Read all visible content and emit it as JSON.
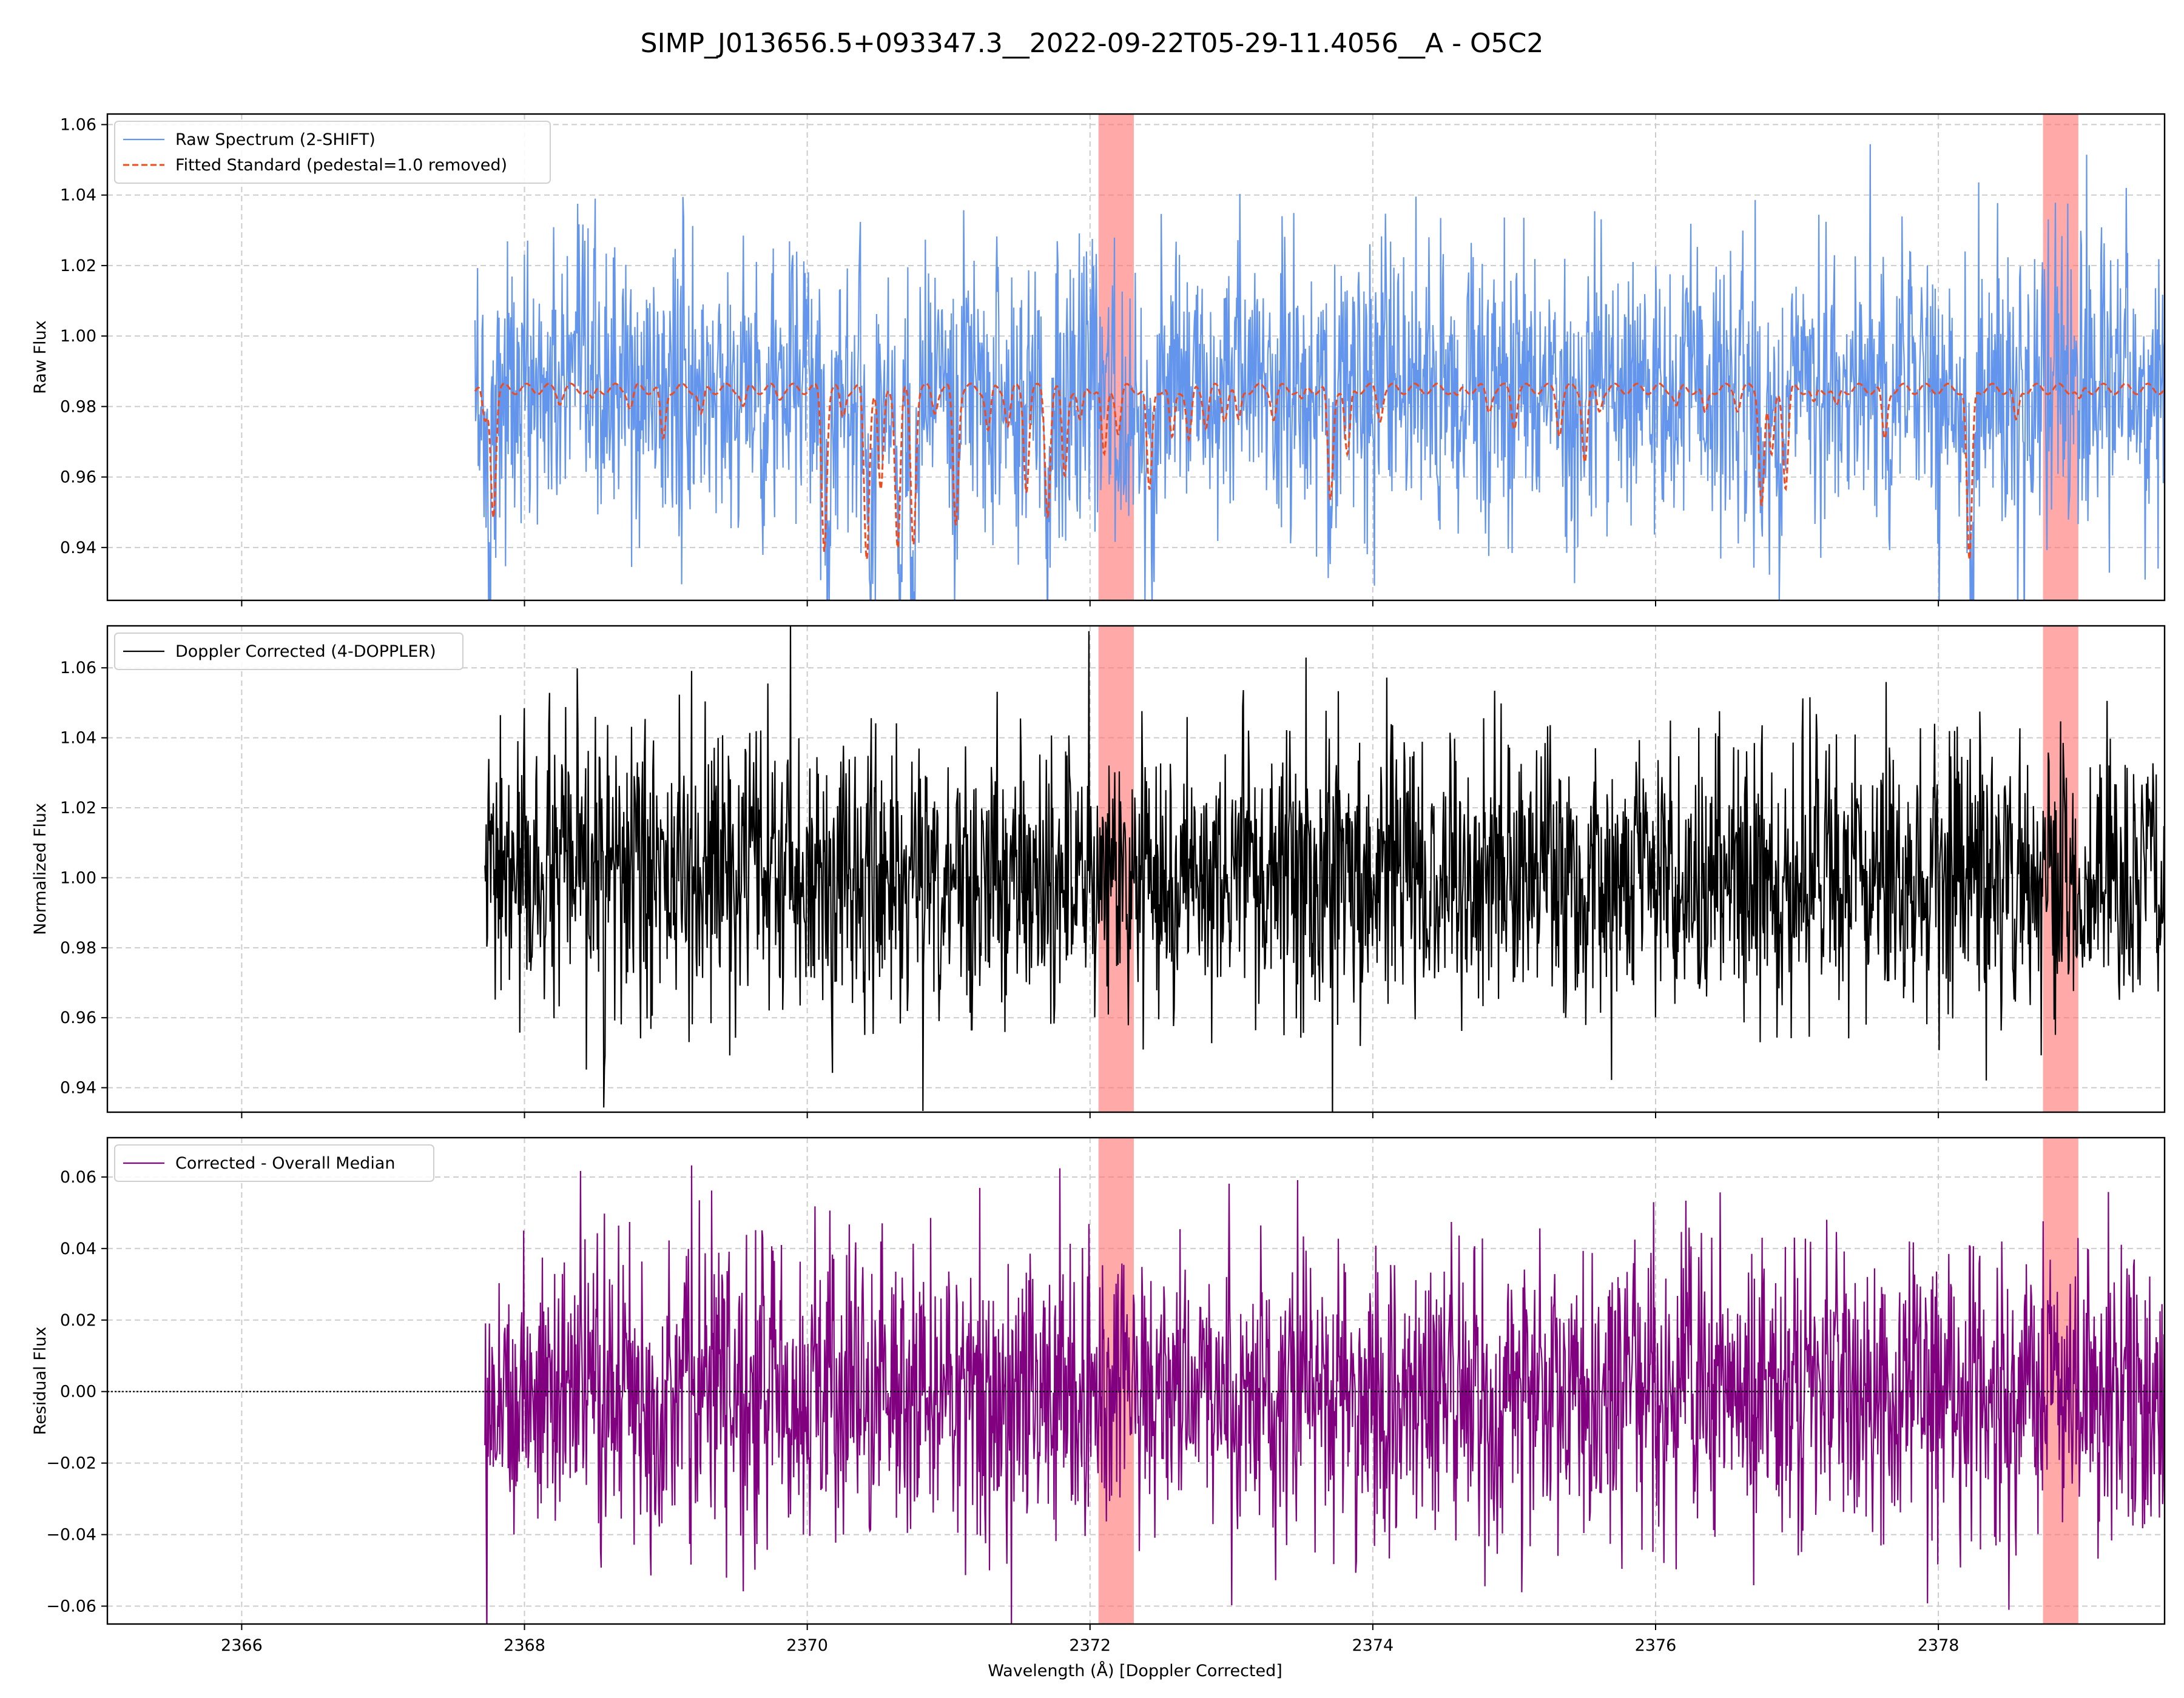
{
  "figure": {
    "title": "SIMP_J013656.5+093347.3__2022-09-22T05-29-11.4056__A - O5C2",
    "xlabel": "Wavelength (Å) [Doppler Corrected]"
  },
  "colors": {
    "raw": "#6495ED",
    "fit": "#EE4B1E",
    "doppler": "#000000",
    "residual": "#800080",
    "mask": "#FF6F6F",
    "grid": "#CCCCCC"
  },
  "chart_data": [
    {
      "type": "line",
      "ylabel": "Raw Flux",
      "xlim": [
        2365.05,
        2379.6
      ],
      "ylim": [
        0.925,
        1.063
      ],
      "xticks": [
        2366,
        2368,
        2370,
        2372,
        2374,
        2376,
        2378
      ],
      "xtick_labels": [
        "",
        "",
        "",
        "",
        "",
        "",
        ""
      ],
      "yticks": [
        0.94,
        0.96,
        0.98,
        1.0,
        1.02,
        1.04,
        1.06
      ],
      "ytick_labels": [
        "0.94",
        "0.96",
        "0.98",
        "1.00",
        "1.02",
        "1.04",
        "1.06"
      ],
      "grid": true,
      "legend_placement": "upper-left",
      "shaded_x_ranges": [
        [
          2372.06,
          2372.31
        ],
        [
          2378.74,
          2378.99
        ]
      ],
      "series": [
        {
          "name": "Raw Spectrum (2-SHIFT)",
          "style": "solid",
          "color": "#6495ED",
          "x_range": [
            2367.65,
            2379.6
          ],
          "baseline": 0.985,
          "noise_amplitude": 0.028,
          "absorption_lines": [
            [
              2367.75,
              0.035
            ],
            [
              2368.8,
              0.012
            ],
            [
              2369.2,
              0.01
            ],
            [
              2370.15,
              0.04
            ],
            [
              2370.45,
              0.045
            ],
            [
              2370.65,
              0.045
            ],
            [
              2370.75,
              0.045
            ],
            [
              2371.05,
              0.035
            ],
            [
              2371.5,
              0.02
            ],
            [
              2371.7,
              0.03
            ],
            [
              2372.2,
              0.02
            ],
            [
              2372.45,
              0.03
            ],
            [
              2373.7,
              0.03
            ],
            [
              2375.0,
              0.01
            ],
            [
              2375.45,
              0.018
            ],
            [
              2376.75,
              0.03
            ],
            [
              2376.9,
              0.03
            ],
            [
              2377.65,
              0.014
            ],
            [
              2378.23,
              0.048
            ]
          ]
        },
        {
          "name": "Fitted Standard (pedestal=1.0 removed)",
          "style": "dashed",
          "color": "#EE4B1E",
          "x_range": [
            2367.65,
            2379.6
          ],
          "baseline": 0.985,
          "lines": [
            [
              2367.72,
              0.01
            ],
            [
              2367.78,
              0.035
            ],
            [
              2368.25,
              0.003
            ],
            [
              2368.48,
              0.004
            ],
            [
              2368.75,
              0.005
            ],
            [
              2368.98,
              0.015
            ],
            [
              2369.25,
              0.008
            ],
            [
              2369.55,
              0.005
            ],
            [
              2369.8,
              0.002
            ],
            [
              2370.12,
              0.045
            ],
            [
              2370.25,
              0.008
            ],
            [
              2370.42,
              0.048
            ],
            [
              2370.52,
              0.03
            ],
            [
              2370.64,
              0.045
            ],
            [
              2370.75,
              0.043
            ],
            [
              2370.9,
              0.006
            ],
            [
              2371.05,
              0.038
            ],
            [
              2371.28,
              0.012
            ],
            [
              2371.42,
              0.01
            ],
            [
              2371.55,
              0.028
            ],
            [
              2371.7,
              0.035
            ],
            [
              2371.82,
              0.025
            ],
            [
              2371.93,
              0.01
            ],
            [
              2372.1,
              0.02
            ],
            [
              2372.2,
              0.012
            ],
            [
              2372.42,
              0.03
            ],
            [
              2372.58,
              0.015
            ],
            [
              2372.7,
              0.015
            ],
            [
              2372.82,
              0.01
            ],
            [
              2372.95,
              0.008
            ],
            [
              2373.05,
              0.01
            ],
            [
              2373.3,
              0.008
            ],
            [
              2373.5,
              0.004
            ],
            [
              2373.7,
              0.032
            ],
            [
              2373.82,
              0.02
            ],
            [
              2374.05,
              0.008
            ],
            [
              2374.6,
              0.003
            ],
            [
              2374.82,
              0.006
            ],
            [
              2375.0,
              0.01
            ],
            [
              2375.32,
              0.012
            ],
            [
              2375.5,
              0.02
            ],
            [
              2375.6,
              0.006
            ],
            [
              2376.15,
              0.005
            ],
            [
              2376.35,
              0.008
            ],
            [
              2376.58,
              0.005
            ],
            [
              2376.75,
              0.032
            ],
            [
              2376.82,
              0.02
            ],
            [
              2376.92,
              0.028
            ],
            [
              2377.12,
              0.005
            ],
            [
              2377.28,
              0.006
            ],
            [
              2377.62,
              0.015
            ],
            [
              2378.22,
              0.05
            ],
            [
              2378.55,
              0.01
            ],
            [
              2379.0,
              0.004
            ]
          ]
        }
      ]
    },
    {
      "type": "line",
      "ylabel": "Normalized Flux",
      "xlim": [
        2365.05,
        2379.6
      ],
      "ylim": [
        0.933,
        1.072
      ],
      "xticks": [
        2366,
        2368,
        2370,
        2372,
        2374,
        2376,
        2378
      ],
      "xtick_labels": [
        "",
        "",
        "",
        "",
        "",
        "",
        ""
      ],
      "yticks": [
        0.94,
        0.96,
        0.98,
        1.0,
        1.02,
        1.04,
        1.06
      ],
      "ytick_labels": [
        "0.94",
        "0.96",
        "0.98",
        "1.00",
        "1.02",
        "1.04",
        "1.06"
      ],
      "grid": true,
      "legend_placement": "upper-left",
      "shaded_x_ranges": [
        [
          2372.06,
          2372.31
        ],
        [
          2378.74,
          2378.99
        ]
      ],
      "series": [
        {
          "name": "Doppler Corrected (4-DOPPLER)",
          "style": "solid",
          "color": "#000000",
          "x_range": [
            2367.72,
            2379.6
          ],
          "baseline": 1.0,
          "noise_amplitude": 0.028
        }
      ]
    },
    {
      "type": "line",
      "ylabel": "Residual Flux",
      "xlim": [
        2365.05,
        2379.6
      ],
      "ylim": [
        -0.065,
        0.071
      ],
      "xticks": [
        2366,
        2368,
        2370,
        2372,
        2374,
        2376,
        2378
      ],
      "xtick_labels": [
        "2366",
        "2368",
        "2370",
        "2372",
        "2374",
        "2376",
        "2378"
      ],
      "yticks": [
        -0.06,
        -0.04,
        -0.02,
        0.0,
        0.02,
        0.04,
        0.06
      ],
      "ytick_labels": [
        "−0.06",
        "−0.04",
        "−0.02",
        "0.00",
        "0.02",
        "0.04",
        "0.06"
      ],
      "grid": true,
      "legend_placement": "upper-left",
      "shaded_x_ranges": [
        [
          2372.06,
          2372.31
        ],
        [
          2378.74,
          2378.99
        ]
      ],
      "reference_line_y": 0.0,
      "series": [
        {
          "name": "Corrected - Overall Median",
          "style": "solid",
          "color": "#800080",
          "x_range": [
            2367.72,
            2379.6
          ],
          "baseline": 0.0,
          "noise_amplitude": 0.028
        }
      ]
    }
  ]
}
